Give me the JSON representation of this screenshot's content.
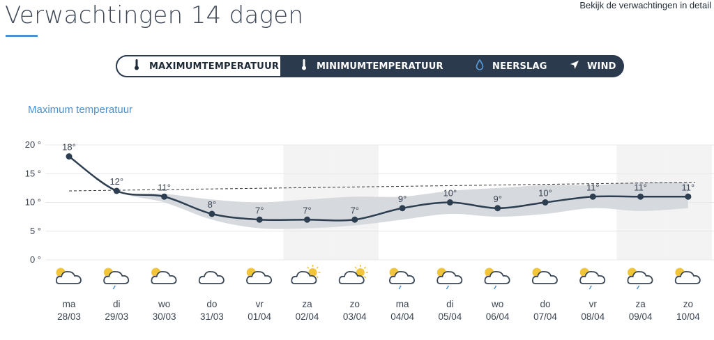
{
  "header": {
    "title": "Verwachtingen 14 dagen",
    "detail_link": "Bekijk de verwachtingen in detail"
  },
  "tabs": [
    {
      "label": "MAXIMUMTEMPERATUUR",
      "icon": "thermometer-icon",
      "active": true
    },
    {
      "label": "MINIMUMTEMPERATUUR",
      "icon": "thermometer-icon",
      "active": false
    },
    {
      "label": "NEERSLAG",
      "icon": "droplet-icon",
      "active": false
    },
    {
      "label": "WIND",
      "icon": "wind-arrow-icon",
      "active": false
    }
  ],
  "chart_heading": "Maximum temperatuur",
  "colors": {
    "accent": "#4a90d0",
    "line": "#2d3e50",
    "band": "#d6d9dd",
    "weekend": "#f3f3f3"
  },
  "chart_data": {
    "type": "line",
    "ylim": [
      0,
      20
    ],
    "yticks": [
      "0 °",
      "5 °",
      "10 °",
      "15 °",
      "20 °"
    ],
    "categories": [
      "28/03",
      "29/03",
      "30/03",
      "31/03",
      "01/04",
      "02/04",
      "03/04",
      "04/04",
      "05/04",
      "06/04",
      "07/04",
      "08/04",
      "09/04",
      "10/04"
    ],
    "series": [
      {
        "values": [
          18,
          12,
          11,
          8,
          7,
          7,
          7,
          9,
          10,
          9,
          10,
          11,
          11,
          11
        ],
        "labels": [
          "18°",
          "12°",
          "11°",
          "8°",
          "7°",
          "7°",
          "7°",
          "9°",
          "10°",
          "9°",
          "10°",
          "11°",
          "11°",
          "11°"
        ]
      }
    ],
    "band_high": [
      18,
      12,
      11.5,
      10.5,
      10,
      10.5,
      11,
      11,
      12,
      12.5,
      13,
      13,
      13.5,
      13.5
    ],
    "band_low": [
      18,
      12,
      10,
      7,
      5.5,
      5.5,
      6,
      7,
      8,
      7.5,
      8,
      9,
      8.5,
      9
    ],
    "normal_line": [
      12,
      13.5
    ],
    "weekend_shaded": [
      "02/04",
      "03/04",
      "09/04",
      "10/04"
    ]
  },
  "days": [
    {
      "name": "ma",
      "date": "28/03",
      "icon": "sun-cloud-icon"
    },
    {
      "name": "di",
      "date": "29/03",
      "icon": "sun-cloud-drizzle-icon"
    },
    {
      "name": "wo",
      "date": "30/03",
      "icon": "sun-cloud-icon"
    },
    {
      "name": "do",
      "date": "31/03",
      "icon": "cloud-icon"
    },
    {
      "name": "vr",
      "date": "01/04",
      "icon": "sun-cloud-icon"
    },
    {
      "name": "za",
      "date": "02/04",
      "icon": "cloud-sun-icon"
    },
    {
      "name": "zo",
      "date": "03/04",
      "icon": "cloud-sun-icon"
    },
    {
      "name": "ma",
      "date": "04/04",
      "icon": "sun-cloud-drizzle-icon"
    },
    {
      "name": "di",
      "date": "05/04",
      "icon": "sun-cloud-drizzle-icon"
    },
    {
      "name": "wo",
      "date": "06/04",
      "icon": "sun-cloud-drizzle-icon"
    },
    {
      "name": "do",
      "date": "07/04",
      "icon": "sun-cloud-icon"
    },
    {
      "name": "vr",
      "date": "08/04",
      "icon": "sun-cloud-drizzle-icon"
    },
    {
      "name": "za",
      "date": "09/04",
      "icon": "sun-cloud-drizzle-icon"
    },
    {
      "name": "zo",
      "date": "10/04",
      "icon": "sun-cloud-icon"
    }
  ]
}
